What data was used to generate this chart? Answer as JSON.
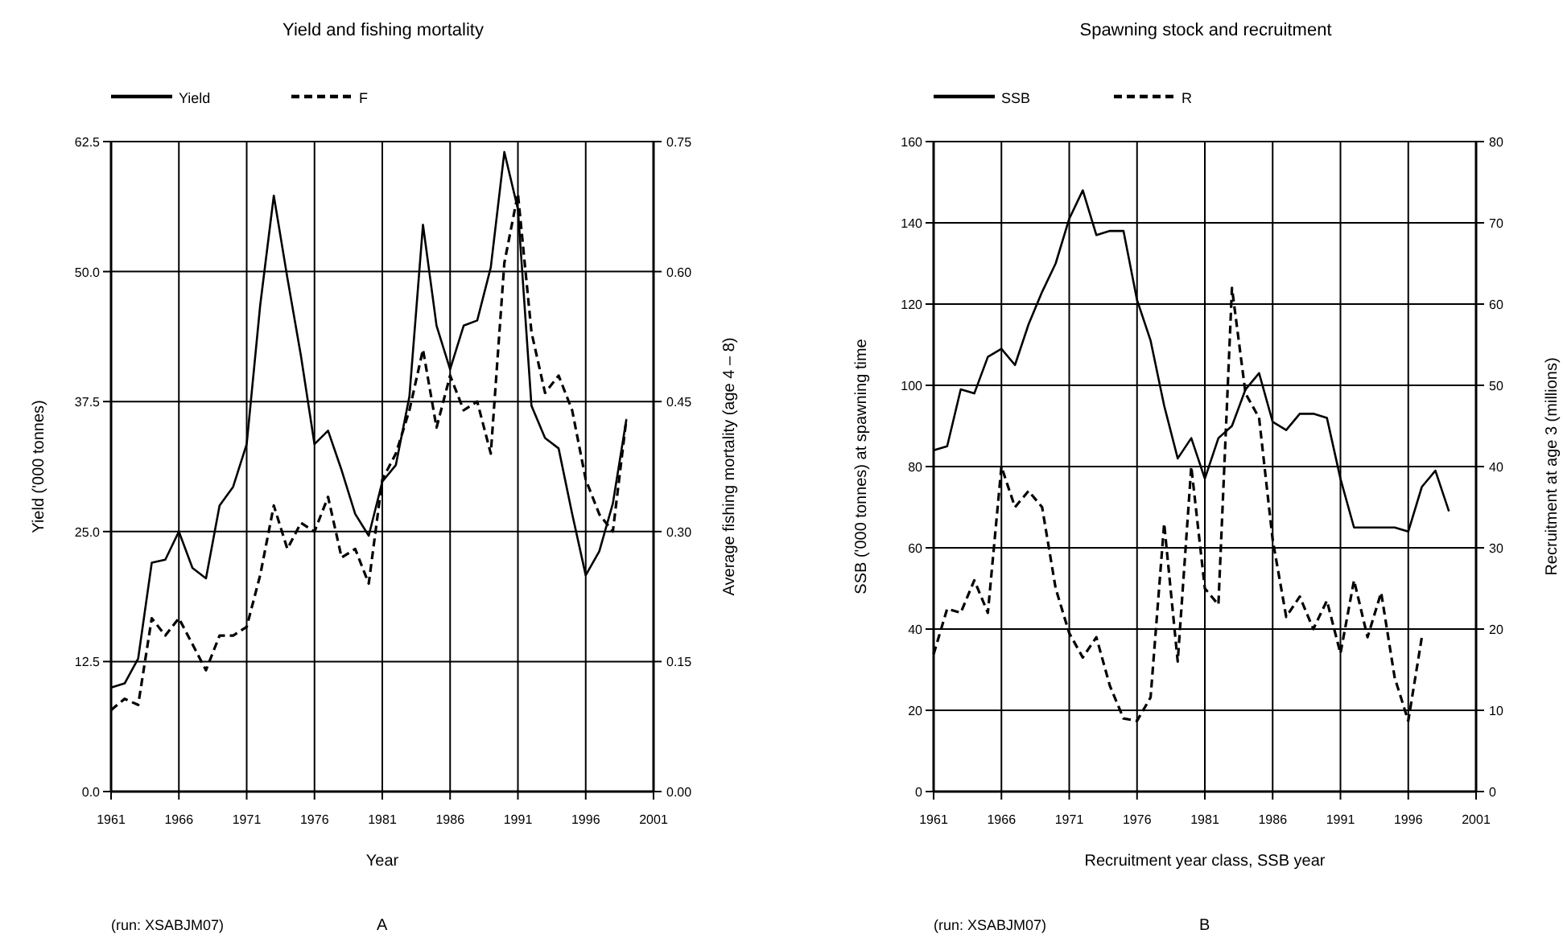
{
  "chart_data": [
    {
      "type": "line",
      "title": "Yield and fishing mortality",
      "xlabel": "Year",
      "ylabel": "Yield ('000 tonnes)",
      "y2label": "Average fishing mortality (age 4 – 8)",
      "x": [
        1961,
        1962,
        1963,
        1964,
        1965,
        1966,
        1967,
        1968,
        1969,
        1970,
        1971,
        1972,
        1973,
        1974,
        1975,
        1976,
        1977,
        1978,
        1979,
        1980,
        1981,
        1982,
        1983,
        1984,
        1985,
        1986,
        1987,
        1988,
        1989,
        1990,
        1991,
        1992,
        1993,
        1994,
        1995,
        1996,
        1997,
        1998,
        1999
      ],
      "series": [
        {
          "name": "Yield",
          "color": "#000000",
          "line_style": "solid",
          "values": [
            10.0,
            10.4,
            12.8,
            22,
            22.3,
            25,
            21.5,
            20.5,
            27.5,
            29.3,
            33.4,
            46.8,
            57.3,
            49.4,
            41.9,
            33.4,
            34.7,
            30.9,
            26.7,
            24.6,
            29.8,
            31.4,
            38,
            54.5,
            44.8,
            40.6,
            44.8,
            45.3,
            50.4,
            61.5,
            56,
            37.1,
            34,
            33,
            26.7,
            20.8,
            23.1,
            27.7,
            35.8
          ]
        },
        {
          "name": "F",
          "color": "#000000",
          "line_style": "dashed",
          "axis": "y2",
          "values": [
            0.094,
            0.107,
            0.1,
            0.2,
            0.18,
            0.2,
            0.17,
            0.14,
            0.18,
            0.18,
            0.19,
            0.25,
            0.33,
            0.28,
            0.31,
            0.3,
            0.34,
            0.27,
            0.28,
            0.24,
            0.36,
            0.39,
            0.44,
            0.51,
            0.42,
            0.48,
            0.44,
            0.45,
            0.39,
            0.61,
            0.69,
            0.53,
            0.46,
            0.48,
            0.44,
            0.36,
            0.32,
            0.3,
            0.43
          ]
        }
      ],
      "xlim": [
        1961,
        2001
      ],
      "xticks": [
        1961,
        1966,
        1971,
        1976,
        1981,
        1986,
        1991,
        1996,
        2001
      ],
      "ylim": [
        0,
        62.5
      ],
      "yticks": [
        {
          "value": 0,
          "label": "0.0"
        },
        12.5,
        {
          "value": 25,
          "label": "25.0"
        },
        37.5,
        {
          "value": 50,
          "label": "50.0"
        },
        62.5
      ],
      "y2lim": [
        0,
        0.75
      ],
      "y2ticks": [
        {
          "value": 0,
          "label": "0.00"
        },
        0.15,
        {
          "value": 0.3,
          "label": "0.30"
        },
        0.45,
        {
          "value": 0.6,
          "label": "0.60"
        },
        0.75
      ],
      "grid": true,
      "legend": "top left",
      "annotations": [
        "(run:  XSABJM07)",
        "A"
      ]
    },
    {
      "type": "line",
      "title": "Spawning stock and recruitment",
      "xlabel": "Recruitment year class, SSB year",
      "ylabel": "SSB ('000 tonnes) at spawning time",
      "y2label": "Recruitment at age 3 (millions)",
      "x": [
        1961,
        1962,
        1963,
        1964,
        1965,
        1966,
        1967,
        1968,
        1969,
        1970,
        1971,
        1972,
        1973,
        1974,
        1975,
        1976,
        1977,
        1978,
        1979,
        1980,
        1981,
        1982,
        1983,
        1984,
        1985,
        1986,
        1987,
        1988,
        1989,
        1990,
        1991,
        1992,
        1993,
        1994,
        1995,
        1996,
        1997,
        1998,
        1999
      ],
      "series": [
        {
          "name": "SSB",
          "color": "#000000",
          "line_style": "solid",
          "values": [
            84,
            85,
            99,
            98,
            107,
            109,
            105,
            115,
            123,
            130,
            141,
            148,
            137,
            138,
            138,
            121,
            111,
            95,
            82,
            87,
            77,
            87,
            90,
            99,
            103,
            91,
            89,
            93,
            93,
            92,
            77,
            65,
            65,
            65,
            65,
            64,
            75,
            79,
            69
          ]
        },
        {
          "name": "R",
          "color": "#000000",
          "line_style": "dashed",
          "axis": "y2",
          "values": [
            16.9,
            22.5,
            22,
            26,
            22,
            40,
            35,
            37,
            35,
            25,
            19.5,
            16.5,
            19,
            13,
            9,
            8.7,
            11.6,
            33,
            16,
            40,
            25,
            23,
            62,
            49,
            46,
            31,
            21.5,
            24,
            20,
            23.5,
            17,
            26,
            19,
            24.5,
            14,
            8.7,
            19,
            null,
            null
          ]
        }
      ],
      "xlim": [
        1961,
        2001
      ],
      "xticks": [
        1961,
        1966,
        1971,
        1976,
        1981,
        1986,
        1991,
        1996,
        2001
      ],
      "ylim": [
        0,
        160
      ],
      "yticks": [
        0,
        20,
        40,
        60,
        80,
        100,
        120,
        140,
        160
      ],
      "y2lim": [
        0,
        80
      ],
      "y2ticks": [
        0,
        10,
        20,
        30,
        40,
        50,
        60,
        70,
        80
      ],
      "grid": true,
      "legend": "top left",
      "annotations": [
        "(run:  XSABJM07)",
        "B"
      ]
    }
  ]
}
